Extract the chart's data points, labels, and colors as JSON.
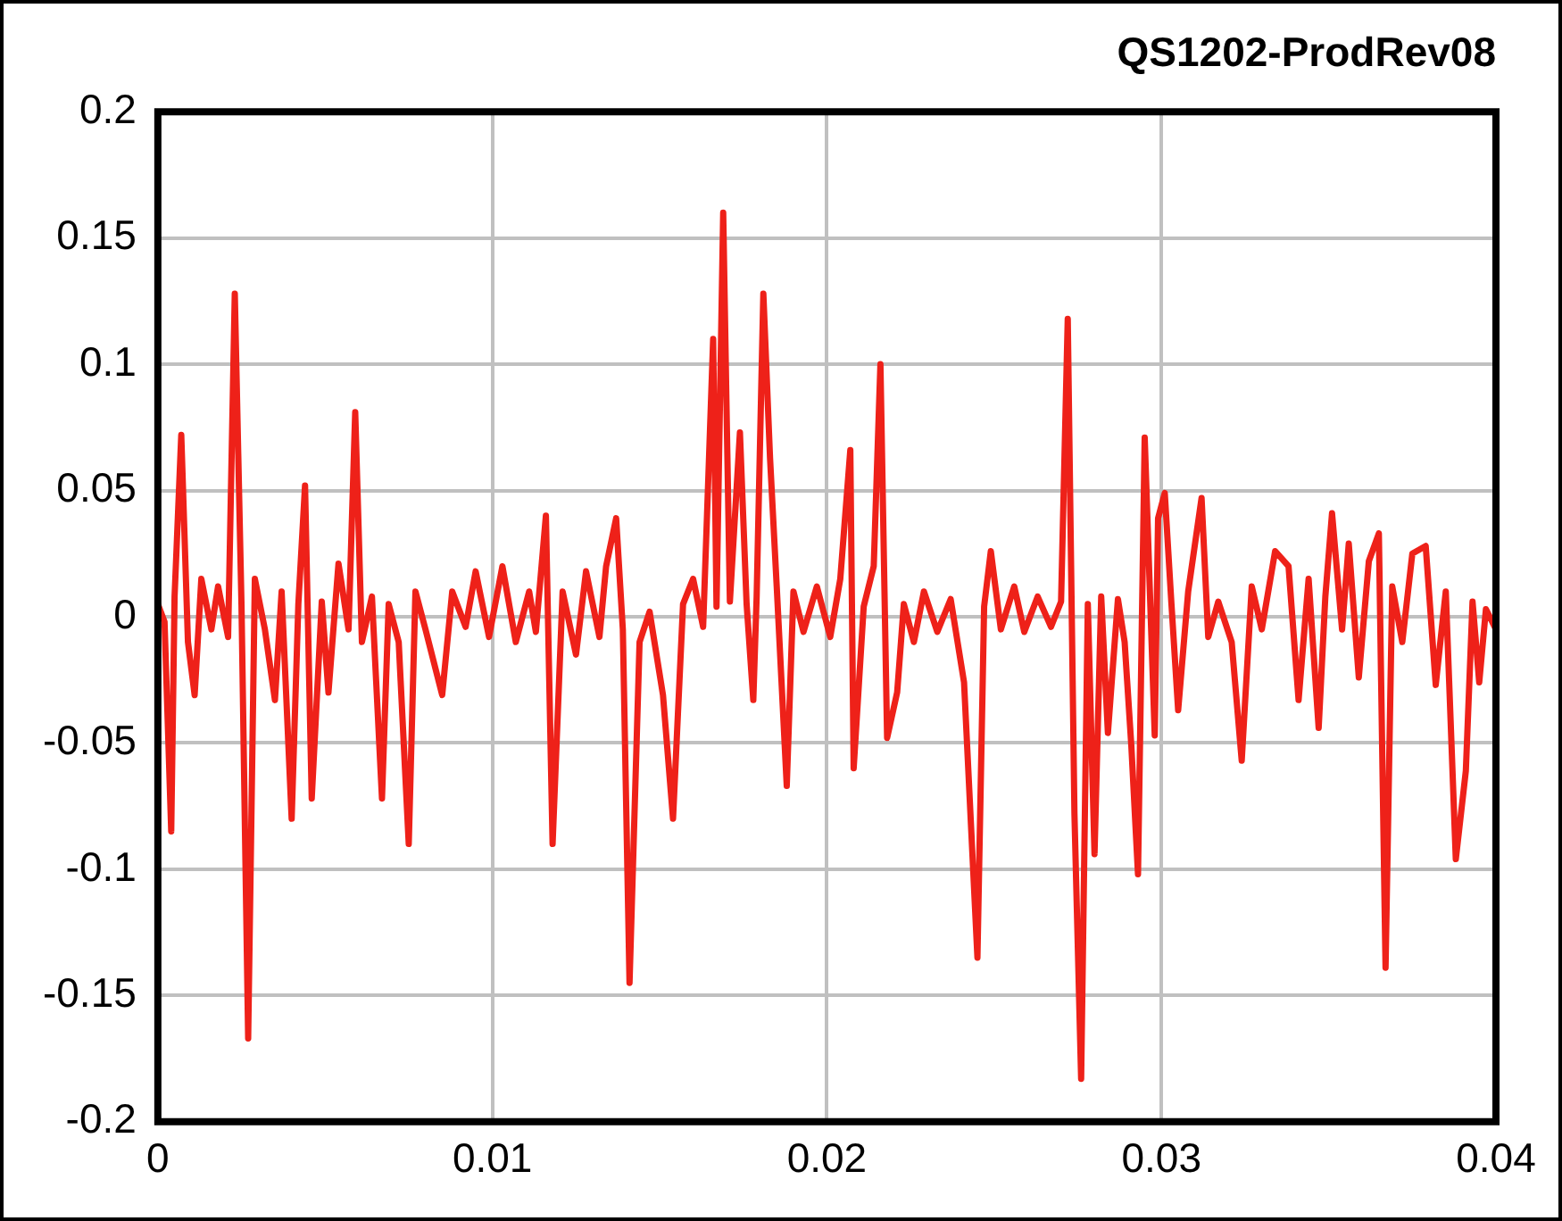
{
  "chart_data": {
    "type": "line",
    "title": "QS1202-ProdRev08",
    "marker": "none",
    "line_style": "solid",
    "grid": true,
    "xlim": [
      0,
      0.04
    ],
    "xticks": [
      0,
      0.01,
      0.02,
      0.03,
      0.04
    ],
    "ylim": [
      -0.2,
      0.2
    ],
    "yticks": [
      -0.2,
      -0.15,
      -0.1,
      -0.05,
      0,
      0.05,
      0.1,
      0.15,
      0.2
    ],
    "series": [
      {
        "color": "#ee2119",
        "x": [
          0,
          0.0002,
          0.0004,
          0.0005,
          0.0007,
          0.0009,
          0.0011,
          0.0013,
          0.0016,
          0.0018,
          0.0021,
          0.0023,
          0.0025,
          0.0027,
          0.0029,
          0.0032,
          0.0035,
          0.0037,
          0.004,
          0.0042,
          0.0044,
          0.0046,
          0.0049,
          0.0051,
          0.0054,
          0.0057,
          0.0059,
          0.0061,
          0.0064,
          0.0067,
          0.0069,
          0.0072,
          0.0075,
          0.0077,
          0.008,
          0.0085,
          0.0088,
          0.0092,
          0.0095,
          0.0099,
          0.0103,
          0.0107,
          0.0111,
          0.0113,
          0.0116,
          0.0118,
          0.0121,
          0.0125,
          0.0128,
          0.0132,
          0.0134,
          0.0137,
          0.0139,
          0.0141,
          0.0144,
          0.0147,
          0.0151,
          0.0154,
          0.0157,
          0.016,
          0.0163,
          0.0166,
          0.0167,
          0.0169,
          0.0171,
          0.0174,
          0.0176,
          0.0178,
          0.0179,
          0.0181,
          0.0183,
          0.0185,
          0.0188,
          0.019,
          0.0193,
          0.0197,
          0.0201,
          0.0204,
          0.0207,
          0.0208,
          0.0211,
          0.0214,
          0.0216,
          0.0218,
          0.0221,
          0.0223,
          0.0226,
          0.0229,
          0.0233,
          0.0237,
          0.0241,
          0.0245,
          0.0247,
          0.0249,
          0.0252,
          0.0256,
          0.0259,
          0.0263,
          0.0267,
          0.027,
          0.0272,
          0.0274,
          0.0276,
          0.0278,
          0.028,
          0.0282,
          0.0284,
          0.0287,
          0.0289,
          0.0291,
          0.0293,
          0.0295,
          0.0298,
          0.0299,
          0.0301,
          0.0303,
          0.0305,
          0.0308,
          0.0312,
          0.0314,
          0.0317,
          0.0321,
          0.0324,
          0.0327,
          0.033,
          0.0334,
          0.0338,
          0.0341,
          0.0344,
          0.0347,
          0.0349,
          0.0351,
          0.0354,
          0.0356,
          0.0359,
          0.0362,
          0.0365,
          0.0367,
          0.0369,
          0.0372,
          0.0375,
          0.0379,
          0.0382,
          0.0385,
          0.0388,
          0.0391,
          0.0393,
          0.0395,
          0.0397,
          0.04
        ],
        "values": [
          0.005,
          -0.002,
          -0.085,
          0.008,
          0.072,
          -0.01,
          -0.031,
          0.015,
          -0.005,
          0.012,
          -0.008,
          0.128,
          0.005,
          -0.167,
          0.015,
          -0.005,
          -0.033,
          0.01,
          -0.08,
          0.005,
          0.052,
          -0.072,
          0.006,
          -0.03,
          0.021,
          -0.005,
          0.081,
          -0.01,
          0.008,
          -0.072,
          0.005,
          -0.01,
          -0.09,
          0.01,
          -0.005,
          -0.031,
          0.01,
          -0.004,
          0.018,
          -0.008,
          0.02,
          -0.01,
          0.01,
          -0.006,
          0.04,
          -0.09,
          0.01,
          -0.015,
          0.018,
          -0.008,
          0.02,
          0.039,
          -0.005,
          -0.145,
          -0.01,
          0.002,
          -0.031,
          -0.08,
          0.005,
          0.015,
          -0.004,
          0.11,
          0.004,
          0.16,
          0.006,
          0.073,
          0.005,
          -0.033,
          0.008,
          0.128,
          0.063,
          0.012,
          -0.067,
          0.01,
          -0.006,
          0.012,
          -0.008,
          0.015,
          0.066,
          -0.06,
          0.004,
          0.02,
          0.1,
          -0.048,
          -0.03,
          0.005,
          -0.01,
          0.01,
          -0.006,
          0.007,
          -0.026,
          -0.135,
          0.004,
          0.026,
          -0.005,
          0.012,
          -0.006,
          0.008,
          -0.004,
          0.006,
          0.118,
          -0.078,
          -0.183,
          0.005,
          -0.094,
          0.008,
          -0.046,
          0.007,
          -0.01,
          -0.051,
          -0.102,
          0.071,
          -0.047,
          0.039,
          0.049,
          0.005,
          -0.037,
          0.01,
          0.047,
          -0.008,
          0.006,
          -0.01,
          -0.057,
          0.012,
          -0.005,
          0.026,
          0.02,
          -0.033,
          0.015,
          -0.044,
          0.008,
          0.041,
          -0.005,
          0.029,
          -0.024,
          0.022,
          0.033,
          -0.139,
          0.012,
          -0.01,
          0.025,
          0.028,
          -0.027,
          0.01,
          -0.096,
          -0.061,
          0.006,
          -0.026,
          0.003,
          -0.005
        ]
      }
    ]
  }
}
